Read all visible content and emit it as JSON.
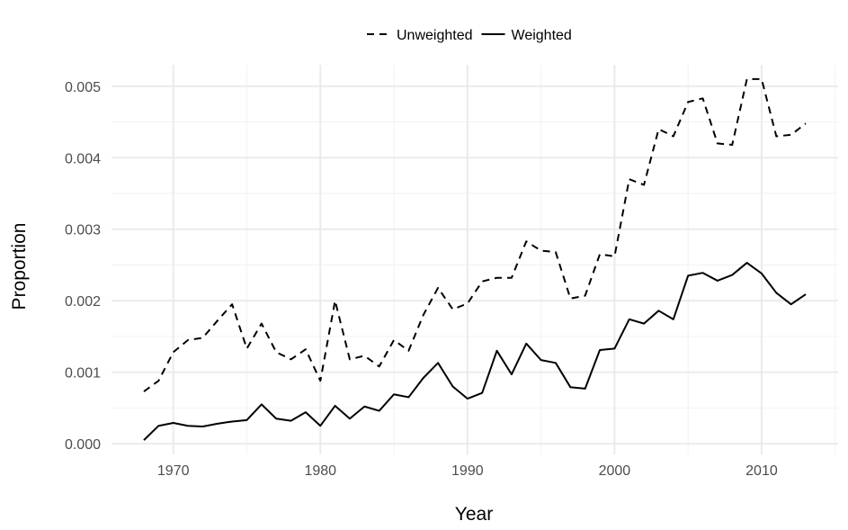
{
  "chart_data": {
    "type": "line",
    "title": "",
    "xlabel": "Year",
    "ylabel": "Proportion",
    "xlim": [
      1965.8,
      2015.2
    ],
    "ylim": [
      -0.00015,
      0.0053
    ],
    "x_ticks": [
      1970,
      1980,
      1990,
      2000,
      2010
    ],
    "x_tick_labels": [
      "1970",
      "1980",
      "1990",
      "2000",
      "2010"
    ],
    "y_ticks": [
      0,
      0.001,
      0.002,
      0.003,
      0.004,
      0.005
    ],
    "y_tick_labels": [
      "0.000",
      "0.001",
      "0.002",
      "0.003",
      "0.004",
      "0.005"
    ],
    "grid": true,
    "legend_position": "top",
    "x": [
      1968,
      1969,
      1970,
      1971,
      1972,
      1973,
      1974,
      1975,
      1976,
      1977,
      1978,
      1979,
      1980,
      1981,
      1982,
      1983,
      1984,
      1985,
      1986,
      1987,
      1988,
      1989,
      1990,
      1991,
      1992,
      1993,
      1994,
      1995,
      1996,
      1997,
      1998,
      1999,
      2000,
      2001,
      2002,
      2003,
      2004,
      2005,
      2006,
      2007,
      2008,
      2009,
      2010,
      2011,
      2012,
      2013
    ],
    "series": [
      {
        "name": "Unweighted",
        "line_style": "dashed",
        "color": "#000000",
        "values": [
          0.00073,
          0.00088,
          0.00128,
          0.00145,
          0.00148,
          0.00172,
          0.00195,
          0.00133,
          0.00168,
          0.00128,
          0.00118,
          0.00132,
          0.00088,
          0.002,
          0.00118,
          0.00123,
          0.00108,
          0.00145,
          0.0013,
          0.0018,
          0.00218,
          0.00188,
          0.00196,
          0.00227,
          0.00232,
          0.00232,
          0.00283,
          0.0027,
          0.00268,
          0.00203,
          0.00207,
          0.00265,
          0.00262,
          0.0037,
          0.00362,
          0.0044,
          0.0043,
          0.00478,
          0.00483,
          0.0042,
          0.00418,
          0.0051,
          0.0051,
          0.0043,
          0.00432,
          0.00448
        ]
      },
      {
        "name": "Weighted",
        "line_style": "solid",
        "color": "#000000",
        "values": [
          5e-05,
          0.00025,
          0.00029,
          0.00025,
          0.00024,
          0.00028,
          0.00031,
          0.00033,
          0.00055,
          0.00035,
          0.00032,
          0.00044,
          0.00025,
          0.00053,
          0.00035,
          0.00052,
          0.00046,
          0.00069,
          0.00065,
          0.00092,
          0.00113,
          0.0008,
          0.00063,
          0.00071,
          0.0013,
          0.00097,
          0.0014,
          0.00117,
          0.00113,
          0.00079,
          0.00077,
          0.00131,
          0.00133,
          0.00174,
          0.00168,
          0.00186,
          0.00174,
          0.00235,
          0.00239,
          0.00228,
          0.00236,
          0.00253,
          0.00238,
          0.00211,
          0.00195,
          0.00209
        ]
      }
    ]
  }
}
